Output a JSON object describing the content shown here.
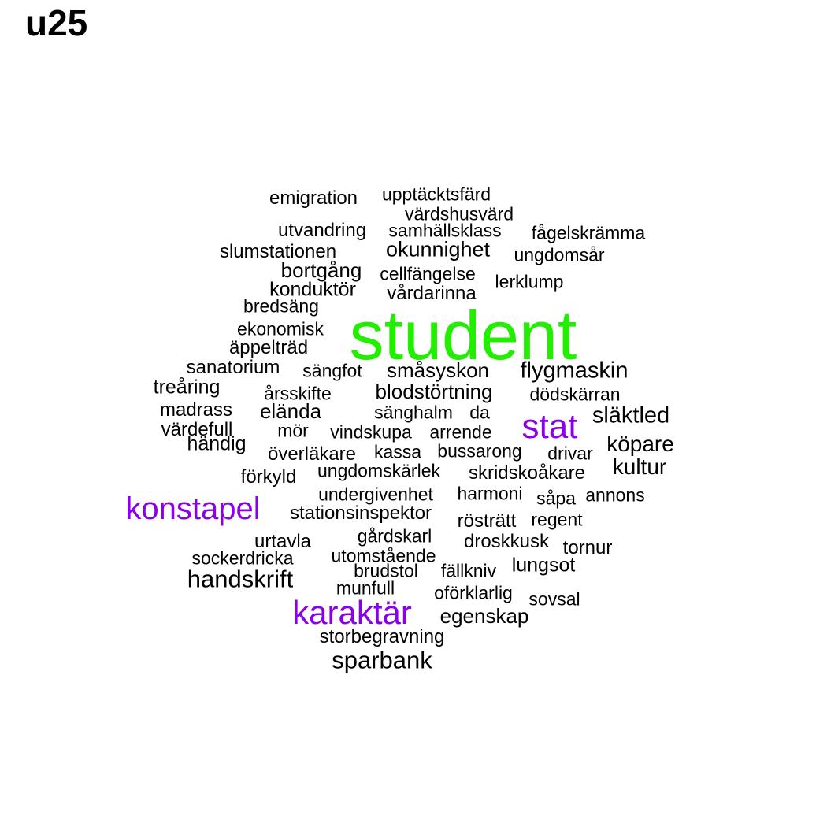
{
  "title": "u25",
  "colors": {
    "large": "#22ee00",
    "medium": "#8b00e8",
    "small": "#000000"
  },
  "words": [
    {
      "text": "student",
      "tier": "large"
    },
    {
      "text": "stat",
      "tier": "medium"
    },
    {
      "text": "konstapel",
      "tier": "medium"
    },
    {
      "text": "karaktär",
      "tier": "medium"
    },
    {
      "text": "emigration",
      "tier": "small"
    },
    {
      "text": "upptäcktsfärd",
      "tier": "small"
    },
    {
      "text": "värdshusvärd",
      "tier": "small"
    },
    {
      "text": "utvandring",
      "tier": "small"
    },
    {
      "text": "samhällsklass",
      "tier": "small"
    },
    {
      "text": "fågelskrämma",
      "tier": "small"
    },
    {
      "text": "slumstationen",
      "tier": "small"
    },
    {
      "text": "okunnighet",
      "tier": "small"
    },
    {
      "text": "ungdomsår",
      "tier": "small"
    },
    {
      "text": "bortgång",
      "tier": "small"
    },
    {
      "text": "cellfängelse",
      "tier": "small"
    },
    {
      "text": "lerklump",
      "tier": "small"
    },
    {
      "text": "konduktör",
      "tier": "small"
    },
    {
      "text": "vårdarinna",
      "tier": "small"
    },
    {
      "text": "bredsäng",
      "tier": "small"
    },
    {
      "text": "ekonomisk",
      "tier": "small"
    },
    {
      "text": "äppelträd",
      "tier": "small"
    },
    {
      "text": "sanatorium",
      "tier": "small"
    },
    {
      "text": "sängfot",
      "tier": "small"
    },
    {
      "text": "småsyskon",
      "tier": "small"
    },
    {
      "text": "flygmaskin",
      "tier": "small"
    },
    {
      "text": "treåring",
      "tier": "small"
    },
    {
      "text": "årsskifte",
      "tier": "small"
    },
    {
      "text": "blodstörtning",
      "tier": "small"
    },
    {
      "text": "dödskärran",
      "tier": "small"
    },
    {
      "text": "madrass",
      "tier": "small"
    },
    {
      "text": "elända",
      "tier": "small"
    },
    {
      "text": "sänghalm",
      "tier": "small"
    },
    {
      "text": "da",
      "tier": "small"
    },
    {
      "text": "släktled",
      "tier": "small"
    },
    {
      "text": "värdefull",
      "tier": "small"
    },
    {
      "text": "mör",
      "tier": "small"
    },
    {
      "text": "vindskupa",
      "tier": "small"
    },
    {
      "text": "arrende",
      "tier": "small"
    },
    {
      "text": "händig",
      "tier": "small"
    },
    {
      "text": "köpare",
      "tier": "small"
    },
    {
      "text": "överläkare",
      "tier": "small"
    },
    {
      "text": "kassa",
      "tier": "small"
    },
    {
      "text": "bussarong",
      "tier": "small"
    },
    {
      "text": "drivar",
      "tier": "small"
    },
    {
      "text": "kultur",
      "tier": "small"
    },
    {
      "text": "förkyld",
      "tier": "small"
    },
    {
      "text": "ungdomskärlek",
      "tier": "small"
    },
    {
      "text": "skridskoåkare",
      "tier": "small"
    },
    {
      "text": "undergivenhet",
      "tier": "small"
    },
    {
      "text": "harmoni",
      "tier": "small"
    },
    {
      "text": "såpa",
      "tier": "small"
    },
    {
      "text": "annons",
      "tier": "small"
    },
    {
      "text": "stationsinspektor",
      "tier": "small"
    },
    {
      "text": "rösträtt",
      "tier": "small"
    },
    {
      "text": "regent",
      "tier": "small"
    },
    {
      "text": "gårdskarl",
      "tier": "small"
    },
    {
      "text": "urtavla",
      "tier": "small"
    },
    {
      "text": "droskkusk",
      "tier": "small"
    },
    {
      "text": "tornur",
      "tier": "small"
    },
    {
      "text": "sockerdricka",
      "tier": "small"
    },
    {
      "text": "utomstående",
      "tier": "small"
    },
    {
      "text": "lungsot",
      "tier": "small"
    },
    {
      "text": "brudstol",
      "tier": "small"
    },
    {
      "text": "fällkniv",
      "tier": "small"
    },
    {
      "text": "handskrift",
      "tier": "small"
    },
    {
      "text": "munfull",
      "tier": "small"
    },
    {
      "text": "oförklarlig",
      "tier": "small"
    },
    {
      "text": "sovsal",
      "tier": "small"
    },
    {
      "text": "egenskap",
      "tier": "small"
    },
    {
      "text": "storbegravning",
      "tier": "small"
    },
    {
      "text": "sparbank",
      "tier": "small"
    }
  ]
}
